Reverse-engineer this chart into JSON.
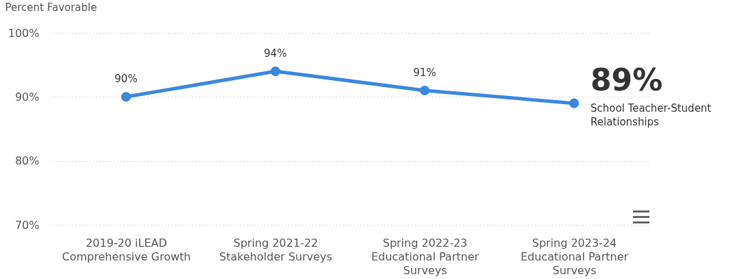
{
  "chart_data": {
    "type": "line",
    "ylabel": "Percent Favorable",
    "categories": [
      "2019-20 iLEAD Comprehensive Growth",
      "Spring 2021-22 Stakeholder Surveys",
      "Spring 2022-23 Educational Partner Surveys",
      "Spring 2023-24 Educational Partner Surveys"
    ],
    "series": [
      {
        "name": "School Teacher-Student Relationships",
        "color": "#3a87de",
        "values": [
          90,
          94,
          91,
          89
        ],
        "value_labels": [
          "90%",
          "94%",
          "91%",
          "89%"
        ]
      }
    ],
    "ylim": [
      70,
      100
    ],
    "yticks": [
      {
        "value": 70,
        "label": "70%"
      },
      {
        "value": 80,
        "label": "80%"
      },
      {
        "value": 90,
        "label": "90%"
      },
      {
        "value": 100,
        "label": "100%"
      }
    ],
    "grid": "y",
    "marker": "circle"
  }
}
